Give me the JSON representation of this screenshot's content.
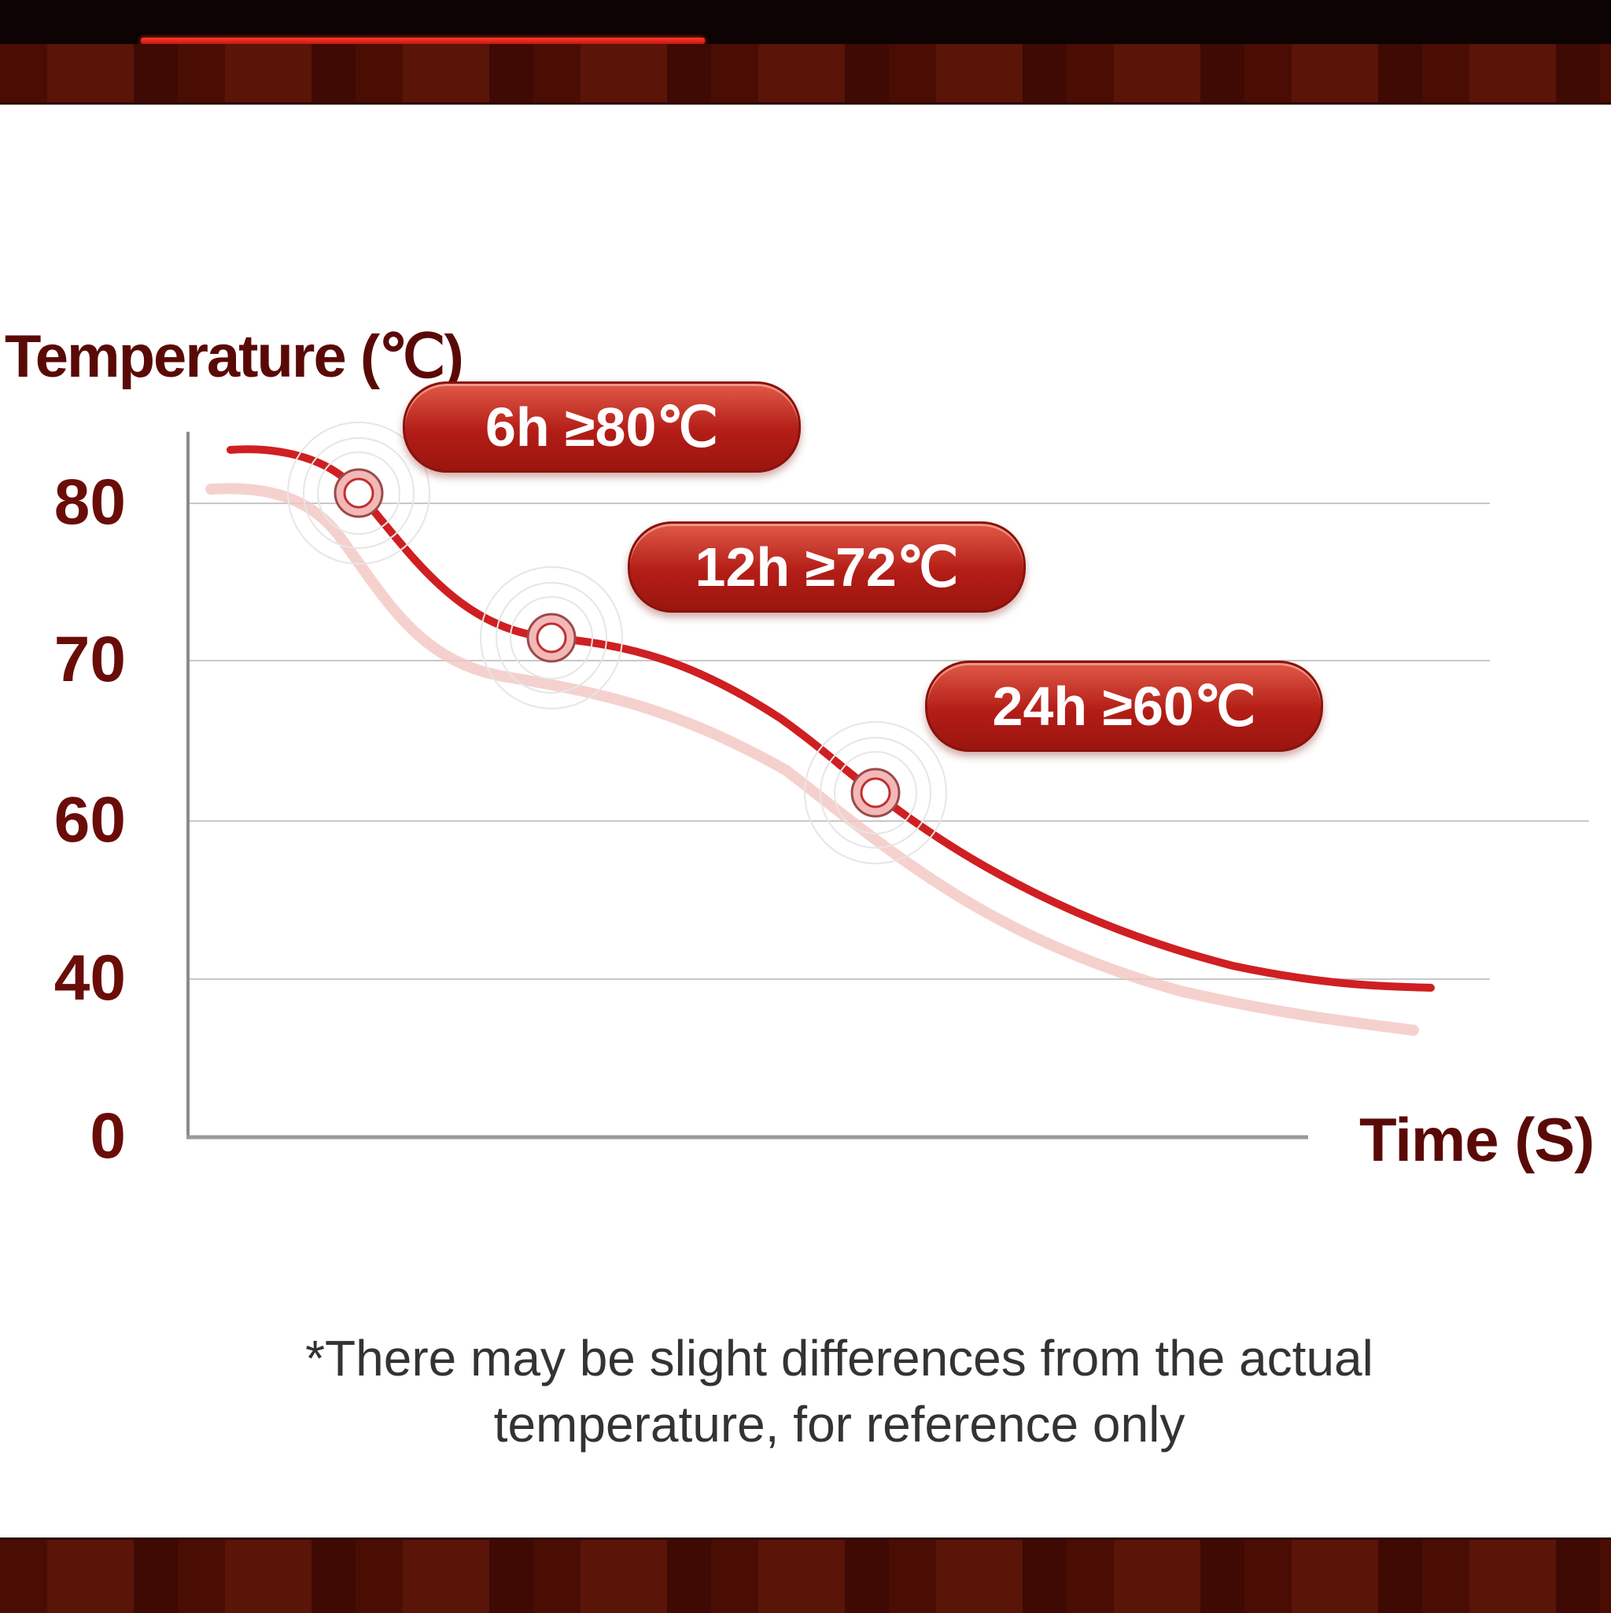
{
  "colors": {
    "accent": "#c81e1e",
    "axis_text": "#6a0d08",
    "band": "#4a0d04",
    "topbar": "#0c0302"
  },
  "header": {
    "progress_fraction": 0.35
  },
  "chart_data": {
    "type": "line",
    "ylabel": "Temperature (℃)",
    "xlabel": "Time (S)",
    "yticks": [
      "0",
      "40",
      "60",
      "70",
      "80"
    ],
    "grid": true,
    "annotations": [
      {
        "label": "6h ≥80℃",
        "time": "6h",
        "value": 80
      },
      {
        "label": "12h ≥72℃",
        "time": "12h",
        "value": 72
      },
      {
        "label": "24h ≥60℃",
        "time": "24h",
        "value": 60
      }
    ]
  },
  "footnote": {
    "line1": "*There may be slight differences from the actual",
    "line2": "temperature, for reference only"
  }
}
